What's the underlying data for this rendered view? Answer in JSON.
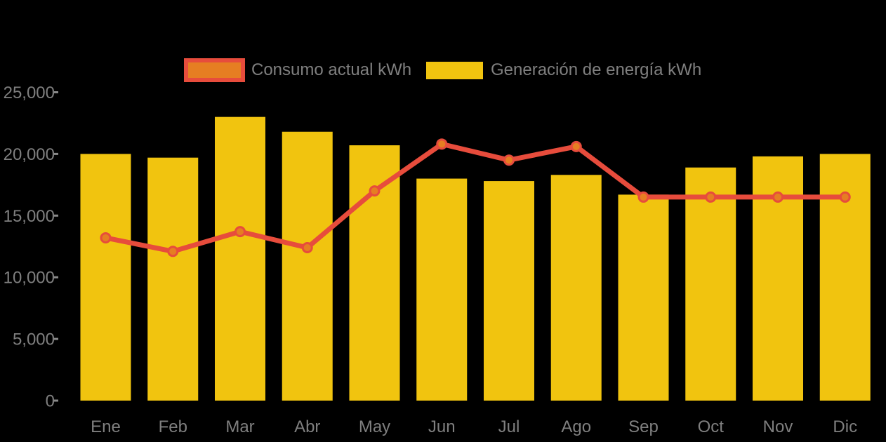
{
  "background": "#000000",
  "text_color": "#7F7F7F",
  "legend": {
    "items": [
      {
        "id": "consumo",
        "label": "Consumo actual kWh",
        "fill": "#E67E22",
        "border": "#E74C3C"
      },
      {
        "id": "generacion",
        "label": "Generación de energía kWh",
        "fill": "#F1C40F"
      }
    ]
  },
  "chart_data": {
    "type": "bar",
    "title": "",
    "xlabel": "",
    "ylabel": "",
    "categories": [
      "Ene",
      "Feb",
      "Mar",
      "Abr",
      "May",
      "Jun",
      "Jul",
      "Ago",
      "Sep",
      "Oct",
      "Nov",
      "Dic"
    ],
    "series": [
      {
        "name": "Generación de energía kWh",
        "type": "bar",
        "color": "#F1C40F",
        "values": [
          20000,
          19700,
          23000,
          21800,
          20700,
          18000,
          17800,
          18300,
          16700,
          18900,
          19800,
          20000
        ]
      },
      {
        "name": "Consumo actual kWh",
        "type": "line",
        "color": "#E74C3C",
        "marker_color": "#E67E22",
        "values": [
          13200,
          12100,
          13700,
          12400,
          17000,
          20800,
          19500,
          20600,
          16500,
          16500,
          16500,
          16500
        ]
      }
    ],
    "ylim": [
      0,
      25000
    ],
    "y_tick_values": [
      0,
      5000,
      10000,
      15000,
      20000,
      25000
    ],
    "y_tick_labels": [
      "0",
      "5,000",
      "10,000",
      "15,000",
      "20,000",
      "25,000"
    ],
    "grid": false,
    "legend_position": "top"
  }
}
